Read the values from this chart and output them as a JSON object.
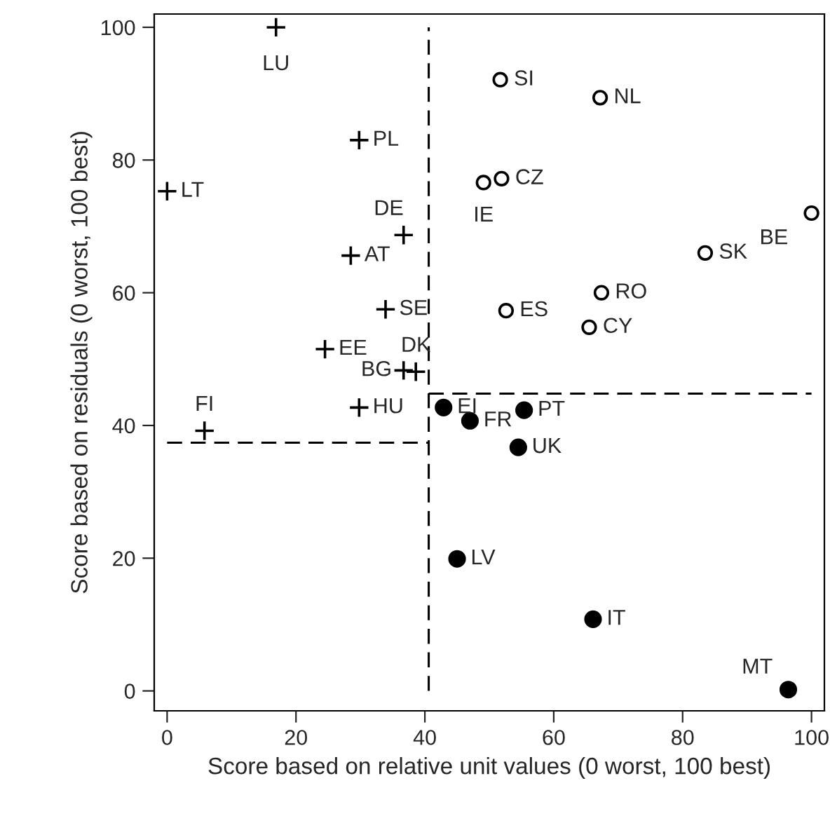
{
  "chart_data": {
    "type": "scatter",
    "xlabel": "Score based on relative unit values (0 worst, 100 best)",
    "ylabel": "Score based on residuals (0 worst, 100 best)",
    "xlim": [
      -2,
      102
    ],
    "ylim": [
      -3,
      102
    ],
    "xticks": [
      0,
      20,
      40,
      60,
      80,
      100
    ],
    "yticks": [
      0,
      20,
      40,
      60,
      80,
      100
    ],
    "grid": false,
    "legend": false,
    "series": [
      {
        "marker": "cross",
        "color": "#000000",
        "x": [
          16.9,
          29.8,
          0,
          36.7,
          28.5,
          33.9,
          24.5,
          36.7,
          38.6,
          29.8,
          5.8
        ],
        "values": [
          100,
          83,
          75.3,
          68.7,
          65.6,
          57.5,
          51.5,
          48.3,
          48.1,
          42.7,
          39.2
        ]
      },
      {
        "marker": "circle",
        "x": [
          51.7,
          67.2,
          49.1,
          51.9,
          100,
          83.5,
          67.4,
          52.6,
          65.5
        ],
        "values": [
          92.1,
          89.4,
          76.6,
          77.2,
          72,
          66,
          60,
          57.3,
          54.8
        ]
      },
      {
        "marker": "circle",
        "color": "#000000",
        "x": [
          42.9,
          47.0,
          55.4,
          54.5,
          45.0,
          66.1,
          96.4
        ],
        "values": [
          42.7,
          40.7,
          42.3,
          36.7,
          19.9,
          10.8,
          0.2
        ]
      },
      {
        "type": "line",
        "line_style": "dashed",
        "color": "#000000",
        "x": [
          0,
          40.6
        ],
        "values": [
          37.4,
          37.4
        ]
      },
      {
        "type": "line",
        "line_style": "dashed",
        "color": "#000000",
        "x": [
          40.6,
          40.6
        ],
        "values": [
          0,
          100
        ]
      },
      {
        "type": "line",
        "line_style": "dashed",
        "color": "#000000",
        "x": [
          40.6,
          100
        ],
        "values": [
          44.8,
          44.8
        ]
      }
    ],
    "annotations": [
      {
        "text": "LU",
        "x": 16.9,
        "y": 100
      },
      {
        "text": "PL",
        "x": 29.8,
        "y": 83
      },
      {
        "text": "LT",
        "x": 0,
        "y": 75.3
      },
      {
        "text": "DE",
        "x": 36.7,
        "y": 68.7
      },
      {
        "text": "AT",
        "x": 28.5,
        "y": 65.6
      },
      {
        "text": "SE",
        "x": 33.9,
        "y": 57.5
      },
      {
        "text": "EE",
        "x": 24.5,
        "y": 51.5
      },
      {
        "text": "BG",
        "x": 36.7,
        "y": 48.3
      },
      {
        "text": "DK",
        "x": 38.6,
        "y": 48.1
      },
      {
        "text": "HU",
        "x": 29.8,
        "y": 42.7
      },
      {
        "text": "FI",
        "x": 5.8,
        "y": 39.2
      },
      {
        "text": "SI",
        "x": 51.7,
        "y": 92.1
      },
      {
        "text": "NL",
        "x": 67.2,
        "y": 89.4
      },
      {
        "text": "IE",
        "x": 49.1,
        "y": 76.6
      },
      {
        "text": "CZ",
        "x": 51.9,
        "y": 77.2
      },
      {
        "text": "BE",
        "x": 100,
        "y": 72
      },
      {
        "text": "SK",
        "x": 83.5,
        "y": 66
      },
      {
        "text": "RO",
        "x": 67.4,
        "y": 60
      },
      {
        "text": "ES",
        "x": 52.6,
        "y": 57.3
      },
      {
        "text": "CY",
        "x": 65.5,
        "y": 54.8
      },
      {
        "text": "EI",
        "x": 42.9,
        "y": 42.7
      },
      {
        "text": "FR",
        "x": 47.0,
        "y": 40.7
      },
      {
        "text": "PT",
        "x": 55.4,
        "y": 42.3
      },
      {
        "text": "UK",
        "x": 54.5,
        "y": 36.7
      },
      {
        "text": "LV",
        "x": 45.0,
        "y": 19.9
      },
      {
        "text": "IT",
        "x": 66.1,
        "y": 10.8
      },
      {
        "text": "MT",
        "x": 96.4,
        "y": 0.2
      }
    ]
  }
}
